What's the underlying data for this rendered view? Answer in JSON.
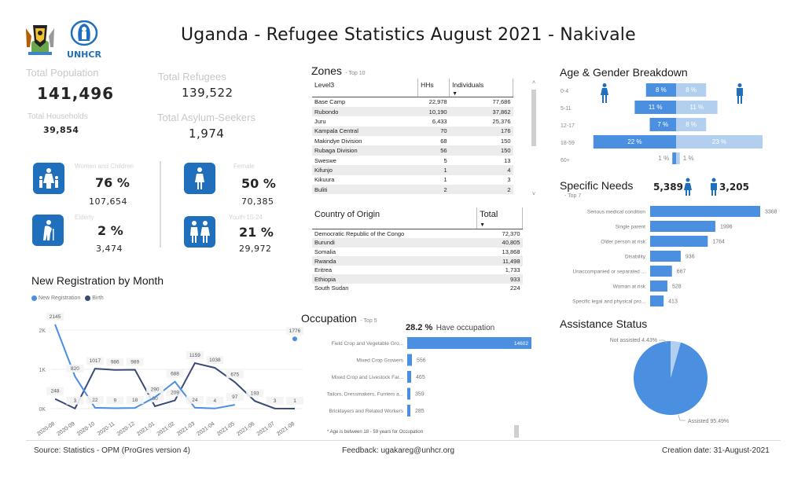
{
  "header": {
    "title": "Uganda - Refugee Statistics August 2021 - Nakivale",
    "logos": [
      "uganda-coat-of-arms",
      "unhcr-logo"
    ],
    "unhcr_text": "UNHCR"
  },
  "kpis": {
    "total_population": {
      "label": "Total Population",
      "value": "141,496"
    },
    "total_refugees": {
      "label": "Total Refugees",
      "value": "139,522"
    },
    "total_households": {
      "label": "Total Households",
      "value": "39,854"
    },
    "total_asylum_seekers": {
      "label": "Total Asylum-Seekers",
      "value": "1,974"
    }
  },
  "demographics": [
    {
      "label": "Women and Children",
      "percent": "76 %",
      "count": "107,654",
      "icon": "women-children-icon"
    },
    {
      "label": "Female",
      "percent": "50 %",
      "count": "70,385",
      "icon": "female-icon"
    },
    {
      "label": "Elderly",
      "percent": "2 %",
      "count": "3,474",
      "icon": "elderly-icon"
    },
    {
      "label": "Youth 15-24",
      "percent": "21 %",
      "count": "29,972",
      "icon": "youth-icon"
    }
  ],
  "zones": {
    "title": "Zones",
    "subtitle": "- Top 10",
    "columns": [
      "Level3",
      "HHs",
      "Individuals"
    ],
    "rows": [
      [
        "Base Camp",
        "22,978",
        "77,686"
      ],
      [
        "Rubondo",
        "10,190",
        "37,862"
      ],
      [
        "Juru",
        "6,433",
        "25,376"
      ],
      [
        "Kampala Central",
        "70",
        "176"
      ],
      [
        "Makindye Division",
        "68",
        "150"
      ],
      [
        "Rubaga Division",
        "56",
        "150"
      ],
      [
        "Sweswe",
        "5",
        "13"
      ],
      [
        "Kifunjo",
        "1",
        "4"
      ],
      [
        "Kikuura",
        "1",
        "3"
      ],
      [
        "Buliti",
        "2",
        "2"
      ]
    ]
  },
  "country_of_origin": {
    "columns": [
      "Country of Origin",
      "Total"
    ],
    "rows": [
      [
        "Democratic Republic of the Congo",
        "72,370"
      ],
      [
        "Burundi",
        "40,805"
      ],
      [
        "Somalia",
        "13,868"
      ],
      [
        "Rwanda",
        "11,498"
      ],
      [
        "Eritrea",
        "1,733"
      ],
      [
        "Ethiopia",
        "933"
      ],
      [
        "South Sudan",
        "224"
      ]
    ]
  },
  "footer": {
    "source": "Source: Statistics - OPM (ProGres version 4)",
    "feedback": "Feedback: ugakareg@unhcr.org",
    "creation_date": "Creation date: 31-August-2021"
  },
  "chart_data": [
    {
      "id": "registration",
      "type": "line",
      "title": "New Registration by Month",
      "x": [
        "2020-08",
        "2020-09",
        "2020-10",
        "2020-11",
        "2020-12",
        "2021-01",
        "2021-02",
        "2021-03",
        "2021-04",
        "2021-05",
        "2021-06",
        "2021-07",
        "2021-08"
      ],
      "series": [
        {
          "name": "New Registration",
          "color": "#4a8fe0",
          "values": [
            2145,
            820,
            22,
            9,
            18,
            290,
            688,
            24,
            4,
            97,
            null,
            null,
            1776
          ]
        },
        {
          "name": "Birth",
          "color": "#3a4a78",
          "values": [
            248,
            3,
            1017,
            986,
            989,
            60,
            209,
            1159,
            1038,
            675,
            193,
            3,
            1
          ]
        }
      ],
      "yticks": [
        "0K",
        "1K",
        "2K"
      ],
      "ylim": [
        0,
        2200
      ],
      "grid": true,
      "legend": "top-left"
    },
    {
      "id": "age_gender",
      "type": "bar",
      "title": "Age & Gender Breakdown",
      "categories": [
        "0-4",
        "5-11",
        "12-17",
        "18-59",
        "60+"
      ],
      "series": [
        {
          "name": "Female",
          "color": "#4a8fe0",
          "values": [
            8,
            11,
            7,
            22,
            1
          ],
          "labels": [
            "8 %",
            "11 %",
            "7 %",
            "22 %",
            "1 %"
          ]
        },
        {
          "name": "Male",
          "color": "#b3cff0",
          "values": [
            8,
            11,
            8,
            23,
            1
          ],
          "labels": [
            "8 %",
            "11 %",
            "8 %",
            "23 %",
            "1 %"
          ]
        }
      ],
      "unit": "%"
    },
    {
      "id": "specific_needs",
      "type": "bar",
      "title": "Specific Needs",
      "subtitle": "- Top 7",
      "female_count": "5,389",
      "male_count": "3,205",
      "categories": [
        "Serious medical condition",
        "Single parent",
        "Older person at risk",
        "Disability",
        "Unaccompanied or separated ...",
        "Woman at risk",
        "Specific legal and physical pro..."
      ],
      "values": [
        3368,
        1996,
        1764,
        936,
        667,
        528,
        413
      ],
      "color": "#4a8fe0"
    },
    {
      "id": "occupation",
      "type": "bar",
      "title": "Occupation",
      "subtitle": "- Top 5",
      "headline_value": "28.2 %",
      "headline_text": "Have occupation",
      "categories": [
        "Field Crop and Vegetable Gro...",
        "Mixed Crop Growers",
        "Mixed Crop and Livestock Far...",
        "Tailors, Dressmakers, Furriers a...",
        "Bricklayers and Related Workers"
      ],
      "values": [
        14602,
        556,
        465,
        359,
        285
      ],
      "footnote": "* Age is between 18 - 59 years for Occupation",
      "color": "#4a8fe0"
    },
    {
      "id": "assistance",
      "type": "pie",
      "title": "Assistance Status",
      "slices": [
        {
          "label": "Assisted",
          "value": 95.49,
          "display": "Assisted 95.49%",
          "color": "#4a8fe0"
        },
        {
          "label": "Not assisted",
          "value": 4.43,
          "display": "Not assisted 4.43%",
          "color": "#b3cff0"
        }
      ]
    }
  ]
}
